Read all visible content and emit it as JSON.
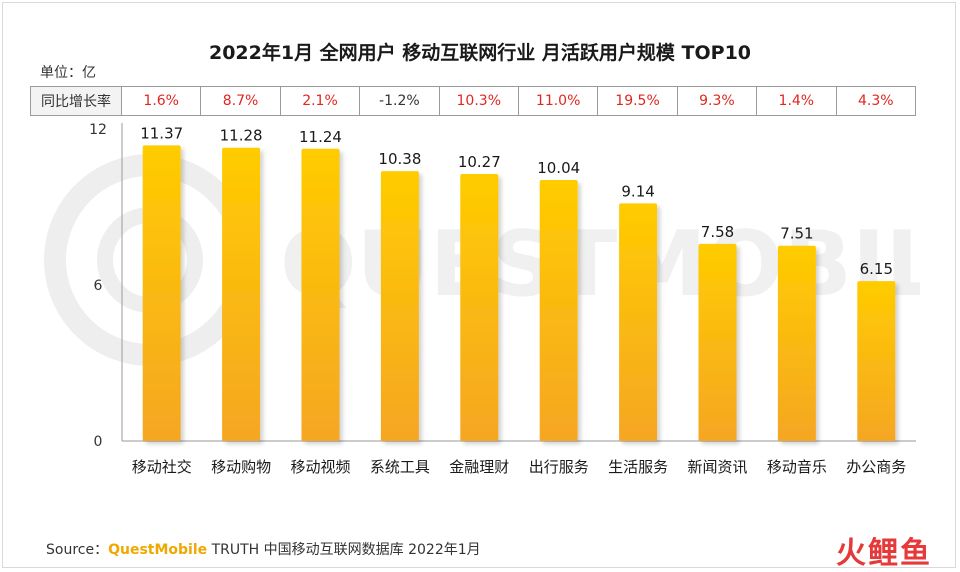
{
  "title": "2022年1月 全网用户 移动互联网行业 月活跃用户规模 TOP10",
  "unit_label": "单位：亿",
  "growth": {
    "header": "同比增长率",
    "values": [
      "1.6%",
      "8.7%",
      "2.1%",
      "-1.2%",
      "10.3%",
      "11.0%",
      "19.5%",
      "9.3%",
      "1.4%",
      "4.3%"
    ]
  },
  "chart_data": {
    "type": "bar",
    "categories": [
      "移动社交",
      "移动购物",
      "移动视频",
      "系统工具",
      "金融理财",
      "出行服务",
      "生活服务",
      "新闻资讯",
      "移动音乐",
      "办公商务"
    ],
    "values": [
      11.37,
      11.28,
      11.24,
      10.38,
      10.27,
      10.04,
      9.14,
      7.58,
      7.51,
      6.15
    ],
    "value_labels": [
      "11.37",
      "11.28",
      "11.24",
      "10.38",
      "10.27",
      "10.04",
      "9.14",
      "7.58",
      "7.51",
      "6.15"
    ],
    "ylim": [
      0,
      12
    ],
    "yticks": [
      "0",
      "6",
      "12"
    ],
    "grid": false,
    "bar_color_top": "#ffcc00",
    "bar_color_bottom": "#f5a623"
  },
  "source": {
    "prefix": "Source：",
    "brand": "QuestMobile",
    "rest": " TRUTH 中国移动互联网数据库 2022年1月"
  },
  "logo_text": "火鲤鱼",
  "watermark_text": "QUESTMOBILE"
}
